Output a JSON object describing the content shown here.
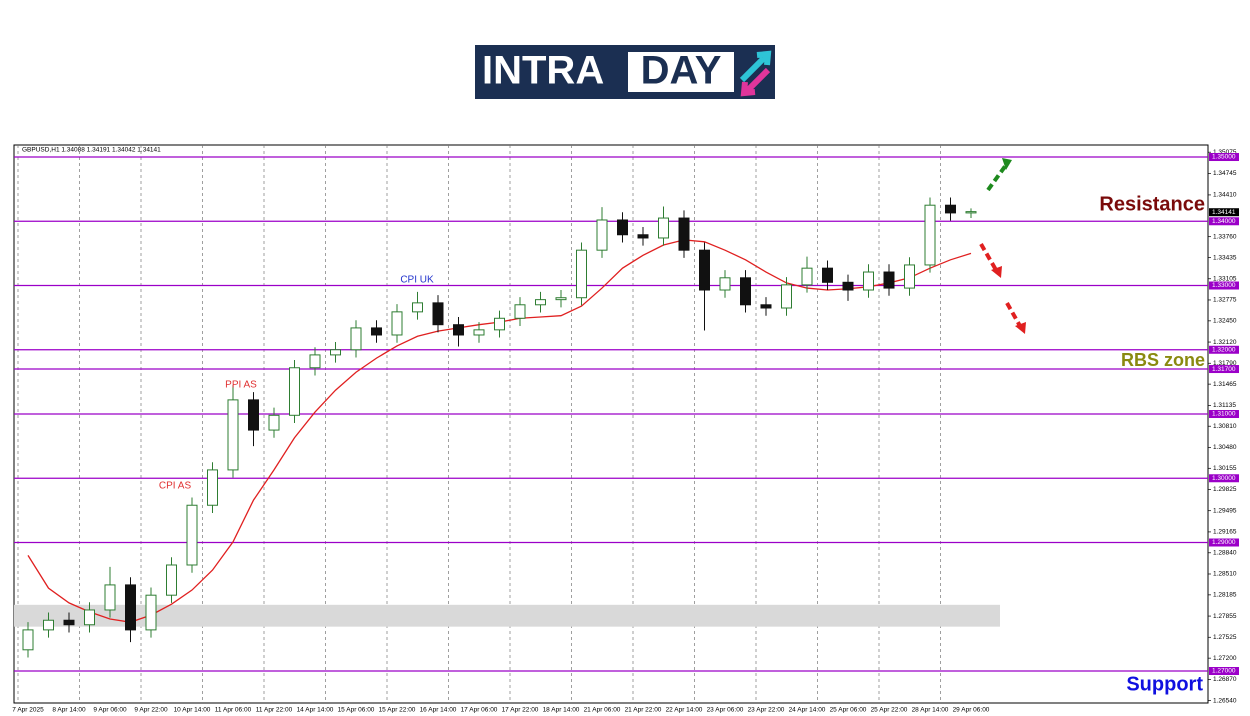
{
  "logo": {
    "left": "INTRA",
    "right": "DAY"
  },
  "chart_data": {
    "type": "candlestick",
    "header": "GBPUSD,H1  1.34088 1.34191 1.34042 1.34141",
    "categories": [
      "7 Apr 2025",
      null,
      "8 Apr 14:00",
      null,
      "9 Apr 06:00",
      null,
      "9 Apr 22:00",
      null,
      "10 Apr 14:00",
      null,
      "11 Apr 06:00",
      null,
      "11 Apr 22:00",
      null,
      "14 Apr 14:00",
      null,
      "15 Apr 06:00",
      null,
      "15 Apr 22:00",
      null,
      "16 Apr 14:00",
      null,
      "17 Apr 06:00",
      null,
      "17 Apr 22:00",
      null,
      "18 Apr 14:00",
      null,
      "21 Apr 06:00",
      null,
      "21 Apr 22:00",
      null,
      "22 Apr 14:00",
      null,
      "23 Apr 06:00",
      null,
      "23 Apr 22:00",
      null,
      "24 Apr 14:00",
      null,
      "25 Apr 06:00",
      null,
      "25 Apr 22:00",
      null,
      "28 Apr 14:00",
      null,
      "29 Apr 06:00"
    ],
    "open": [
      1.2733,
      1.2764,
      1.2779,
      1.2772,
      1.2795,
      1.2834,
      1.2764,
      1.2818,
      1.2865,
      1.2958,
      1.3013,
      1.3122,
      1.3075,
      1.3098,
      1.3172,
      1.3192,
      1.32,
      1.3234,
      1.3223,
      1.3259,
      1.3273,
      1.3239,
      1.3223,
      1.3231,
      1.3249,
      1.327,
      1.3278,
      1.3281,
      1.3355,
      1.3402,
      1.3379,
      1.3374,
      1.3405,
      1.3355,
      1.3293,
      1.3312,
      1.327,
      1.3265,
      1.3301,
      1.3327,
      1.3305,
      1.3293,
      1.3321,
      1.3296,
      1.3332,
      1.3425,
      1.3413
    ],
    "high": [
      1.2776,
      1.2791,
      1.2791,
      1.2807,
      1.2862,
      1.2846,
      1.283,
      1.2877,
      1.297,
      1.3025,
      1.3145,
      1.3134,
      1.311,
      1.3184,
      1.3204,
      1.3212,
      1.3246,
      1.3246,
      1.3271,
      1.329,
      1.3285,
      1.3251,
      1.3243,
      1.3261,
      1.3282,
      1.329,
      1.3293,
      1.3367,
      1.3422,
      1.3414,
      1.3391,
      1.3423,
      1.3417,
      1.3367,
      1.3324,
      1.3324,
      1.3282,
      1.3313,
      1.3345,
      1.3339,
      1.3317,
      1.3333,
      1.3333,
      1.3344,
      1.3437,
      1.3437,
      1.342
    ],
    "low": [
      1.2721,
      1.2752,
      1.276,
      1.276,
      1.2783,
      1.2745,
      1.2752,
      1.2806,
      1.2853,
      1.2946,
      1.3001,
      1.305,
      1.3063,
      1.3086,
      1.316,
      1.318,
      1.3188,
      1.3211,
      1.3211,
      1.3247,
      1.3227,
      1.3205,
      1.3211,
      1.3219,
      1.3237,
      1.3258,
      1.3266,
      1.3269,
      1.3343,
      1.3367,
      1.3362,
      1.3362,
      1.3343,
      1.323,
      1.3281,
      1.3258,
      1.3253,
      1.3253,
      1.3289,
      1.3293,
      1.3276,
      1.3281,
      1.3284,
      1.3284,
      1.332,
      1.3401,
      1.3405
    ],
    "close": [
      1.2764,
      1.2779,
      1.2772,
      1.2795,
      1.2834,
      1.2764,
      1.2818,
      1.2865,
      1.2958,
      1.3013,
      1.3122,
      1.3075,
      1.3098,
      1.3172,
      1.3192,
      1.32,
      1.3234,
      1.3223,
      1.3259,
      1.3273,
      1.3239,
      1.3223,
      1.3231,
      1.3249,
      1.327,
      1.3278,
      1.3281,
      1.3355,
      1.3402,
      1.3379,
      1.3374,
      1.3405,
      1.3355,
      1.3293,
      1.3312,
      1.327,
      1.3265,
      1.3301,
      1.3327,
      1.3305,
      1.3293,
      1.3321,
      1.3296,
      1.3332,
      1.3425,
      1.3413,
      1.3415
    ],
    "up_color": "#2e7d32",
    "down_color": "#111111",
    "ma": {
      "color": "#e02020",
      "values": [
        1.288,
        1.2829,
        1.2806,
        1.2792,
        1.2781,
        1.2776,
        1.2787,
        1.2804,
        1.2826,
        1.2857,
        1.2901,
        1.2966,
        1.3013,
        1.3063,
        1.3103,
        1.3137,
        1.3165,
        1.3187,
        1.3206,
        1.3221,
        1.3229,
        1.3234,
        1.3239,
        1.3243,
        1.3249,
        1.3251,
        1.3253,
        1.3268,
        1.3296,
        1.3327,
        1.3347,
        1.3363,
        1.3371,
        1.3368,
        1.3355,
        1.334,
        1.3321,
        1.3304,
        1.3296,
        1.3293,
        1.3295,
        1.3298,
        1.3304,
        1.3312,
        1.3327,
        1.334,
        1.335
      ]
    },
    "ylim": [
      1.26502,
      1.35187
    ],
    "yticks": [
      1.35075,
      1.34745,
      {
        "value": 1.3441,
        "label": "1.34410"
      },
      {
        "value": 1.3376,
        "label": "1.33760"
      },
      1.33435,
      1.33105,
      1.32775,
      {
        "value": 1.3245,
        "label": "1.32450"
      },
      {
        "value": 1.3212,
        "label": "1.32120"
      },
      {
        "value": 1.3179,
        "label": "1.31790"
      },
      1.31465,
      1.31135,
      {
        "value": 1.3081,
        "label": "1.30810"
      },
      {
        "value": 1.3048,
        "label": "1.30480"
      },
      1.30155,
      1.29825,
      1.29495,
      1.29165,
      {
        "value": 1.2884,
        "label": "1.28840"
      },
      {
        "value": 1.2851,
        "label": "1.28510"
      },
      1.28185,
      1.27855,
      1.27525,
      {
        "value": 1.272,
        "label": "1.27200"
      },
      {
        "value": 1.2687,
        "label": "1.26870"
      },
      {
        "value": 1.2654,
        "label": "1.26540"
      }
    ],
    "levels": [
      {
        "value": 1.35,
        "label": "1.35000"
      },
      {
        "value": 1.34,
        "label": "1.34000"
      },
      {
        "value": 1.33,
        "label": "1.33000"
      },
      {
        "value": 1.32,
        "label": "1.32000"
      },
      {
        "value": 1.317,
        "label": "1.31700"
      },
      {
        "value": 1.31,
        "label": "1.31000"
      },
      {
        "value": 1.3,
        "label": "1.30000"
      },
      {
        "value": 1.29,
        "label": "1.29000"
      },
      {
        "value": 1.27,
        "label": "1.27000"
      }
    ],
    "level_color": "#9b00c8",
    "current_price": 1.34141,
    "zone": [
      1.2769,
      1.2803
    ],
    "annotations": [
      {
        "text": "CPI UK",
        "color": "#2233cc"
      },
      {
        "text": "PPI AS",
        "color": "#e03030"
      },
      {
        "text": "CPI AS",
        "color": "#e03030"
      }
    ],
    "side_labels": [
      {
        "text": "Resistance",
        "color": "#7a0a0a"
      },
      {
        "text": "RBS zone",
        "color": "#8a8a10"
      },
      {
        "text": "Support",
        "color": "#1010e0"
      }
    ]
  }
}
